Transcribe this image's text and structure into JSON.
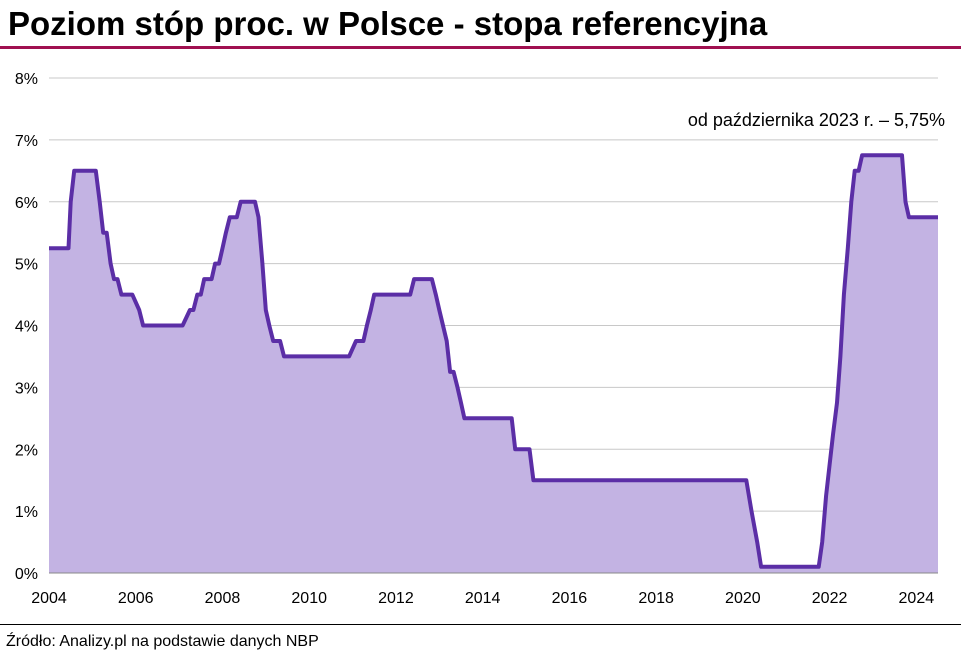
{
  "title": "Poziom stóp proc. w Polsce - stopa referencyjna",
  "source": "Źródło: Analizy.pl na podstawie danych NBP",
  "colors": {
    "line": "#5b2ea6",
    "area": "#c3b3e3",
    "grid": "#c8c8c8",
    "title_rule": "#a01050"
  },
  "chart_data": {
    "type": "area",
    "title": "Poziom stóp proc. w Polsce - stopa referencyjna",
    "xlabel": "",
    "ylabel": "",
    "xlim": [
      2004,
      2024.5
    ],
    "ylim": [
      0,
      8
    ],
    "x_ticks": [
      "2004",
      "2006",
      "2008",
      "2010",
      "2012",
      "2014",
      "2016",
      "2018",
      "2020",
      "2022",
      "2024"
    ],
    "y_ticks": [
      "0%",
      "1%",
      "2%",
      "3%",
      "4%",
      "5%",
      "6%",
      "7%",
      "8%"
    ],
    "grid": true,
    "annotation": "od października  2023 r. – 5,75%",
    "series": [
      {
        "values": [
          [
            2004.0,
            5.25
          ],
          [
            2004.45,
            5.25
          ],
          [
            2004.5,
            6.0
          ],
          [
            2004.58,
            6.5
          ],
          [
            2005.08,
            6.5
          ],
          [
            2005.17,
            6.0
          ],
          [
            2005.25,
            5.5
          ],
          [
            2005.33,
            5.5
          ],
          [
            2005.42,
            5.0
          ],
          [
            2005.5,
            4.75
          ],
          [
            2005.58,
            4.75
          ],
          [
            2005.67,
            4.5
          ],
          [
            2005.92,
            4.5
          ],
          [
            2006.08,
            4.25
          ],
          [
            2006.17,
            4.0
          ],
          [
            2007.08,
            4.0
          ],
          [
            2007.25,
            4.25
          ],
          [
            2007.33,
            4.25
          ],
          [
            2007.42,
            4.5
          ],
          [
            2007.5,
            4.5
          ],
          [
            2007.58,
            4.75
          ],
          [
            2007.75,
            4.75
          ],
          [
            2007.83,
            5.0
          ],
          [
            2007.92,
            5.0
          ],
          [
            2008.0,
            5.25
          ],
          [
            2008.08,
            5.5
          ],
          [
            2008.17,
            5.75
          ],
          [
            2008.33,
            5.75
          ],
          [
            2008.42,
            6.0
          ],
          [
            2008.75,
            6.0
          ],
          [
            2008.83,
            5.75
          ],
          [
            2008.92,
            5.0
          ],
          [
            2009.0,
            4.25
          ],
          [
            2009.08,
            4.0
          ],
          [
            2009.17,
            3.75
          ],
          [
            2009.33,
            3.75
          ],
          [
            2009.42,
            3.5
          ],
          [
            2010.92,
            3.5
          ],
          [
            2011.08,
            3.75
          ],
          [
            2011.25,
            3.75
          ],
          [
            2011.33,
            4.0
          ],
          [
            2011.42,
            4.25
          ],
          [
            2011.5,
            4.5
          ],
          [
            2012.33,
            4.5
          ],
          [
            2012.42,
            4.75
          ],
          [
            2012.83,
            4.75
          ],
          [
            2012.92,
            4.5
          ],
          [
            2013.0,
            4.25
          ],
          [
            2013.17,
            3.75
          ],
          [
            2013.25,
            3.25
          ],
          [
            2013.33,
            3.25
          ],
          [
            2013.42,
            3.0
          ],
          [
            2013.5,
            2.75
          ],
          [
            2013.58,
            2.5
          ],
          [
            2014.67,
            2.5
          ],
          [
            2014.75,
            2.0
          ],
          [
            2015.08,
            2.0
          ],
          [
            2015.17,
            1.5
          ],
          [
            2020.08,
            1.5
          ],
          [
            2020.2,
            1.0
          ],
          [
            2020.33,
            0.5
          ],
          [
            2020.42,
            0.1
          ],
          [
            2021.75,
            0.1
          ],
          [
            2021.83,
            0.5
          ],
          [
            2021.92,
            1.25
          ],
          [
            2022.0,
            1.75
          ],
          [
            2022.08,
            2.25
          ],
          [
            2022.17,
            2.75
          ],
          [
            2022.25,
            3.5
          ],
          [
            2022.33,
            4.5
          ],
          [
            2022.42,
            5.25
          ],
          [
            2022.5,
            6.0
          ],
          [
            2022.58,
            6.5
          ],
          [
            2022.67,
            6.5
          ],
          [
            2022.75,
            6.75
          ],
          [
            2023.67,
            6.75
          ],
          [
            2023.75,
            6.0
          ],
          [
            2023.83,
            5.75
          ],
          [
            2024.5,
            5.75
          ]
        ]
      }
    ]
  }
}
